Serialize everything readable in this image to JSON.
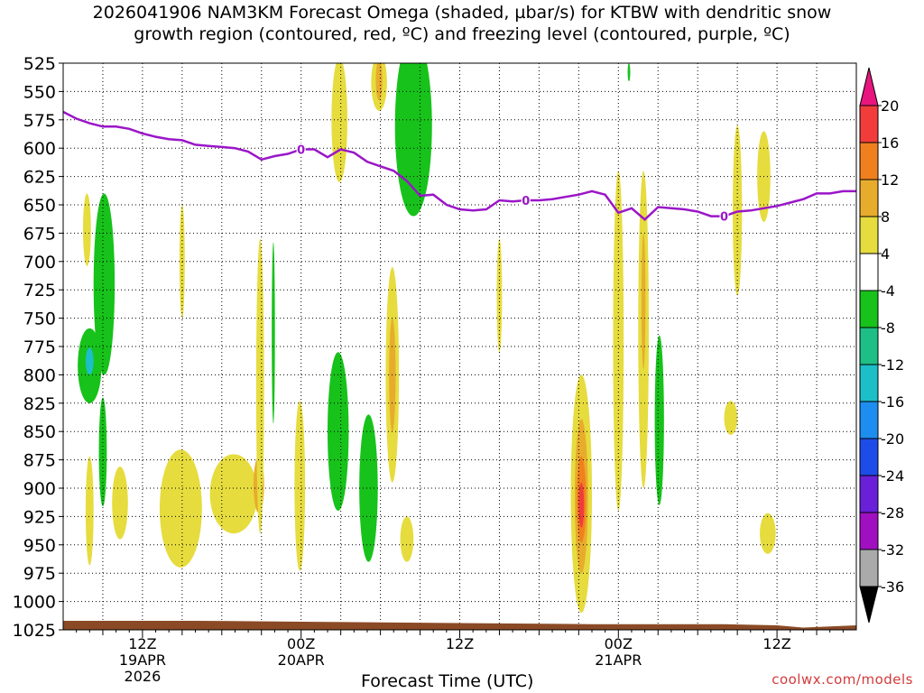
{
  "chart_data": {
    "type": "heatmap",
    "title_lines": [
      "2026041906 NAM3KM Forecast Omega (shaded, µbar/s) for KTBW with dendritic snow",
      "growth region (contoured, red, ºC) and freezing level (contoured, purple, ºC)"
    ],
    "xlabel": "Forecast Time (UTC)",
    "credit": "coolwx.com/models",
    "y_ticks": [
      525,
      550,
      575,
      600,
      625,
      650,
      675,
      700,
      725,
      750,
      775,
      800,
      825,
      850,
      875,
      900,
      925,
      950,
      975,
      1000,
      1025
    ],
    "y_range_hpa": [
      525,
      1025
    ],
    "x_range_hours": [
      0,
      60
    ],
    "x_ticks": [
      {
        "hour": 6,
        "lines": [
          "12Z",
          "19APR",
          "2026"
        ]
      },
      {
        "hour": 18,
        "lines": [
          "00Z",
          "20APR"
        ]
      },
      {
        "hour": 30,
        "lines": [
          "12Z"
        ]
      },
      {
        "hour": 42,
        "lines": [
          "00Z",
          "21APR"
        ]
      },
      {
        "hour": 54,
        "lines": [
          "12Z"
        ]
      }
    ],
    "colorbar": {
      "labels": [
        "20",
        "16",
        "12",
        "8",
        "4",
        "-4",
        "-8",
        "-12",
        "-16",
        "-20",
        "-24",
        "-28",
        "-32",
        "-36"
      ],
      "colors": [
        "#f23c3c",
        "#f0801e",
        "#e8ac2d",
        "#e6dc3e",
        "#ffffff",
        "#17c21a",
        "#1dbf86",
        "#1cbec8",
        "#1d8ef0",
        "#1d4ce8",
        "#6a1fd8",
        "#a010c0",
        "#aaaaaa"
      ],
      "top_color": "#e8157f",
      "bottom_color": "#000000"
    },
    "freezing_level": {
      "label": "0",
      "color": "#9a16c8",
      "label_hours": [
        18,
        35,
        50
      ],
      "points": [
        [
          0,
          568
        ],
        [
          1,
          574
        ],
        [
          2,
          578
        ],
        [
          3,
          581
        ],
        [
          4,
          581
        ],
        [
          5,
          583
        ],
        [
          6,
          587
        ],
        [
          7,
          590
        ],
        [
          8,
          592
        ],
        [
          9,
          593
        ],
        [
          10,
          597
        ],
        [
          11,
          598
        ],
        [
          12,
          599
        ],
        [
          13,
          600
        ],
        [
          14,
          603
        ],
        [
          15,
          610
        ],
        [
          16,
          607
        ],
        [
          17,
          605
        ],
        [
          18,
          601
        ],
        [
          19,
          601
        ],
        [
          20,
          608
        ],
        [
          21,
          601
        ],
        [
          22,
          604
        ],
        [
          23,
          612
        ],
        [
          24,
          616
        ],
        [
          25,
          620
        ],
        [
          26,
          629
        ],
        [
          27,
          642
        ],
        [
          28,
          641
        ],
        [
          29,
          650
        ],
        [
          30,
          654
        ],
        [
          31,
          655
        ],
        [
          32,
          654
        ],
        [
          33,
          646
        ],
        [
          34,
          647
        ],
        [
          35,
          646
        ],
        [
          36,
          646
        ],
        [
          37,
          645
        ],
        [
          38,
          643
        ],
        [
          39,
          641
        ],
        [
          40,
          638
        ],
        [
          41,
          641
        ],
        [
          42,
          657
        ],
        [
          43,
          653
        ],
        [
          44,
          663
        ],
        [
          45,
          652
        ],
        [
          46,
          653
        ],
        [
          47,
          654
        ],
        [
          48,
          656
        ],
        [
          49,
          660
        ],
        [
          50,
          660
        ],
        [
          51,
          656
        ],
        [
          52,
          655
        ],
        [
          53,
          653
        ],
        [
          54,
          651
        ],
        [
          55,
          648
        ],
        [
          56,
          645
        ],
        [
          57,
          640
        ],
        [
          58,
          640
        ],
        [
          59,
          638
        ],
        [
          60,
          638
        ]
      ]
    },
    "ground_color": "#8b4a26",
    "features": [
      {
        "type": "positive",
        "level": 1,
        "t": 1.8,
        "p": 672,
        "dt": 0.3,
        "dp": 32
      },
      {
        "type": "negative",
        "level": 1,
        "t": 3.1,
        "p": 720,
        "dt": 0.8,
        "dp": 80
      },
      {
        "type": "negative",
        "level": 1,
        "t": 2.0,
        "p": 792,
        "dt": 0.9,
        "dp": 33
      },
      {
        "type": "negative",
        "level": 3,
        "t": 2.0,
        "p": 788,
        "dt": 0.3,
        "dp": 12
      },
      {
        "type": "negative",
        "level": 1,
        "t": 3.0,
        "p": 868,
        "dt": 0.3,
        "dp": 48
      },
      {
        "type": "positive",
        "level": 1,
        "t": 2.0,
        "p": 920,
        "dt": 0.3,
        "dp": 48
      },
      {
        "type": "positive",
        "level": 1,
        "t": 4.3,
        "p": 913,
        "dt": 0.6,
        "dp": 32
      },
      {
        "type": "positive",
        "level": 1,
        "t": 8.9,
        "p": 918,
        "dt": 1.6,
        "dp": 52
      },
      {
        "type": "positive",
        "level": 1,
        "t": 9.0,
        "p": 700,
        "dt": 0.2,
        "dp": 50
      },
      {
        "type": "positive",
        "level": 1,
        "t": 12.9,
        "p": 905,
        "dt": 1.8,
        "dp": 35
      },
      {
        "type": "positive",
        "level": 2,
        "t": 14.8,
        "p": 897,
        "dt": 0.4,
        "dp": 25
      },
      {
        "type": "positive",
        "level": 1,
        "t": 14.9,
        "p": 810,
        "dt": 0.3,
        "dp": 130
      },
      {
        "type": "negative",
        "level": 1,
        "t": 15.9,
        "p": 763,
        "dt": 0.12,
        "dp": 80
      },
      {
        "type": "positive",
        "level": 1,
        "t": 17.9,
        "p": 898,
        "dt": 0.4,
        "dp": 75
      },
      {
        "type": "negative",
        "level": 1,
        "t": 20.8,
        "p": 850,
        "dt": 0.8,
        "dp": 70
      },
      {
        "type": "positive",
        "level": 1,
        "t": 20.9,
        "p": 575,
        "dt": 0.6,
        "dp": 55
      },
      {
        "type": "negative",
        "level": 1,
        "t": 23.1,
        "p": 900,
        "dt": 0.7,
        "dp": 65
      },
      {
        "type": "positive",
        "level": 1,
        "t": 23.9,
        "p": 542,
        "dt": 0.6,
        "dp": 25
      },
      {
        "type": "positive",
        "level": 2,
        "t": 23.9,
        "p": 540,
        "dt": 0.25,
        "dp": 18
      },
      {
        "type": "positive",
        "level": 1,
        "t": 24.9,
        "p": 800,
        "dt": 0.5,
        "dp": 95
      },
      {
        "type": "positive",
        "level": 2,
        "t": 24.9,
        "p": 800,
        "dt": 0.25,
        "dp": 50
      },
      {
        "type": "negative",
        "level": 1,
        "t": 26.5,
        "p": 580,
        "dt": 1.4,
        "dp": 80
      },
      {
        "type": "positive",
        "level": 1,
        "t": 26.0,
        "p": 945,
        "dt": 0.5,
        "dp": 20
      },
      {
        "type": "positive",
        "level": 1,
        "t": 33.0,
        "p": 730,
        "dt": 0.2,
        "dp": 50
      },
      {
        "type": "positive",
        "level": 1,
        "t": 39.2,
        "p": 905,
        "dt": 0.8,
        "dp": 105
      },
      {
        "type": "positive",
        "level": 2,
        "t": 39.2,
        "p": 907,
        "dt": 0.5,
        "dp": 68
      },
      {
        "type": "positive",
        "level": 3,
        "t": 39.2,
        "p": 910,
        "dt": 0.35,
        "dp": 38
      },
      {
        "type": "positive",
        "level": 4,
        "t": 39.2,
        "p": 915,
        "dt": 0.2,
        "dp": 20
      },
      {
        "type": "positive",
        "level": 1,
        "t": 42.0,
        "p": 770,
        "dt": 0.4,
        "dp": 150
      },
      {
        "type": "positive",
        "level": 1,
        "t": 43.9,
        "p": 760,
        "dt": 0.4,
        "dp": 140
      },
      {
        "type": "positive",
        "level": 2,
        "t": 43.9,
        "p": 735,
        "dt": 0.15,
        "dp": 60
      },
      {
        "type": "negative",
        "level": 1,
        "t": 45.1,
        "p": 840,
        "dt": 0.35,
        "dp": 75
      },
      {
        "type": "negative",
        "level": 1,
        "t": 42.8,
        "p": 533,
        "dt": 0.1,
        "dp": 8
      },
      {
        "type": "positive",
        "level": 1,
        "t": 50.5,
        "p": 838,
        "dt": 0.5,
        "dp": 15
      },
      {
        "type": "positive",
        "level": 1,
        "t": 51.0,
        "p": 655,
        "dt": 0.35,
        "dp": 75
      },
      {
        "type": "positive",
        "level": 1,
        "t": 53.0,
        "p": 625,
        "dt": 0.5,
        "dp": 40
      },
      {
        "type": "positive",
        "level": 1,
        "t": 53.3,
        "p": 940,
        "dt": 0.6,
        "dp": 18
      }
    ]
  }
}
